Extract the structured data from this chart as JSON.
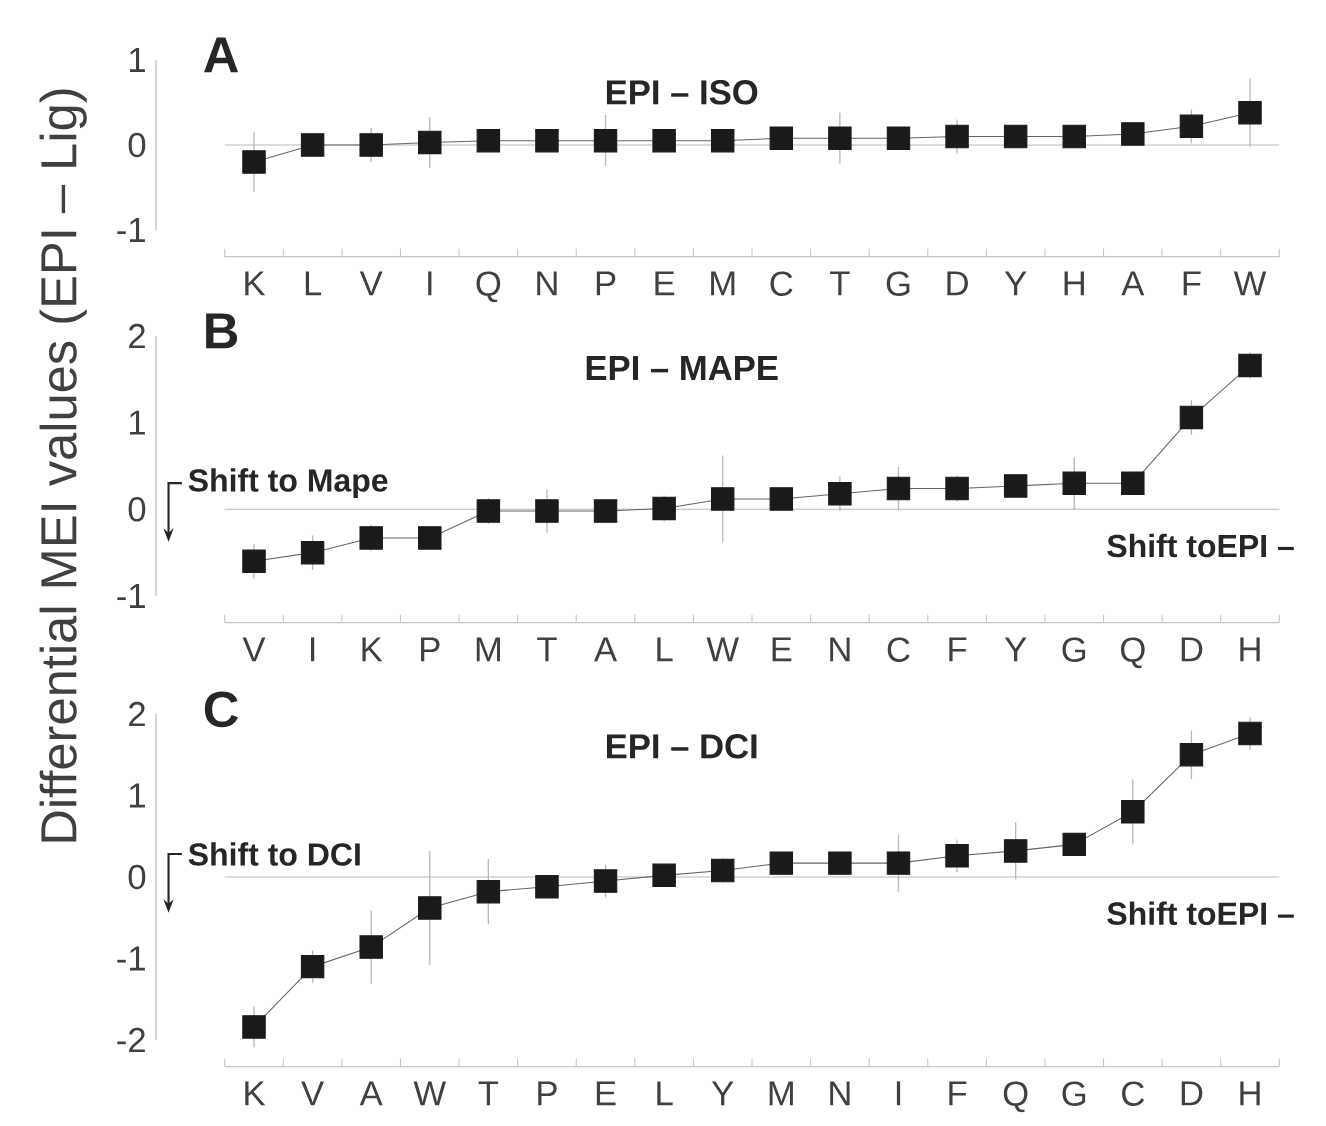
{
  "chart_data": [
    {
      "type": "line",
      "title": "A",
      "subtitle": "EPI – ISO",
      "marker": "square",
      "color": "#1a1a1a",
      "categories": [
        "K",
        "L",
        "V",
        "I",
        "Q",
        "N",
        "P",
        "E",
        "M",
        "C",
        "T",
        "G",
        "D",
        "Y",
        "H",
        "A",
        "F",
        "W"
      ],
      "values": [
        -0.2,
        0,
        0,
        0.03,
        0.05,
        0.05,
        0.05,
        0.05,
        0.05,
        0.08,
        0.08,
        0.08,
        0.1,
        0.1,
        0.1,
        0.13,
        0.22,
        0.38
      ],
      "errors": [
        0.35,
        0.1,
        0.2,
        0.3,
        0.1,
        0.1,
        0.3,
        0.1,
        0.1,
        0.1,
        0.3,
        0.1,
        0.2,
        0.1,
        0.1,
        0.1,
        0.2,
        0.4
      ],
      "ylim": [
        -1,
        1
      ],
      "yticks": [
        -1,
        0,
        1
      ],
      "ref_lines": [
        {
          "axis": "y",
          "value": 0
        }
      ]
    },
    {
      "type": "line",
      "title": "B",
      "subtitle": "EPI – MAPE",
      "ylabel": "Differential MEI values (EPI – Lig)",
      "marker": "square",
      "color": "#1a1a1a",
      "categories": [
        "V",
        "I",
        "K",
        "P",
        "M",
        "T",
        "A",
        "L",
        "W",
        "E",
        "N",
        "C",
        "F",
        "Y",
        "G",
        "Q",
        "D",
        "H"
      ],
      "values": [
        -0.6,
        -0.5,
        -0.33,
        -0.33,
        -0.02,
        -0.02,
        -0.02,
        0.01,
        0.12,
        0.12,
        0.18,
        0.24,
        0.24,
        0.27,
        0.3,
        0.3,
        1.06,
        1.66
      ],
      "errors": [
        0.2,
        0.2,
        0.15,
        0.1,
        0.15,
        0.25,
        0.1,
        0.15,
        0.5,
        0.1,
        0.2,
        0.25,
        0.15,
        0.1,
        0.3,
        0.1,
        0.2,
        0.15
      ],
      "ylim": [
        -1,
        2
      ],
      "yticks": [
        -1,
        0,
        1,
        2
      ],
      "ref_lines": [
        {
          "axis": "y",
          "value": 0
        }
      ],
      "annotations": [
        "Shift to Mape",
        "Shift toEPI –"
      ]
    },
    {
      "type": "line",
      "title": "C",
      "subtitle": "EPI – DCI",
      "marker": "square",
      "color": "#1a1a1a",
      "categories": [
        "K",
        "V",
        "A",
        "W",
        "T",
        "P",
        "E",
        "L",
        "Y",
        "M",
        "N",
        "I",
        "F",
        "Q",
        "G",
        "C",
        "D",
        "H"
      ],
      "values": [
        -1.84,
        -1.1,
        -0.86,
        -0.38,
        -0.18,
        -0.12,
        -0.05,
        0.02,
        0.08,
        0.17,
        0.17,
        0.17,
        0.26,
        0.32,
        0.4,
        0.8,
        1.5,
        1.76
      ],
      "errors": [
        0.25,
        0.2,
        0.45,
        0.7,
        0.4,
        0.1,
        0.2,
        0.1,
        0.15,
        0.1,
        0.1,
        0.35,
        0.2,
        0.35,
        0.1,
        0.4,
        0.3,
        0.2
      ],
      "ylim": [
        -2,
        2
      ],
      "yticks": [
        -2,
        -1,
        0,
        1,
        2
      ],
      "ref_lines": [
        {
          "axis": "y",
          "value": 0
        }
      ],
      "annotations": [
        "Shift to DCI",
        "Shift toEPI –"
      ]
    }
  ]
}
